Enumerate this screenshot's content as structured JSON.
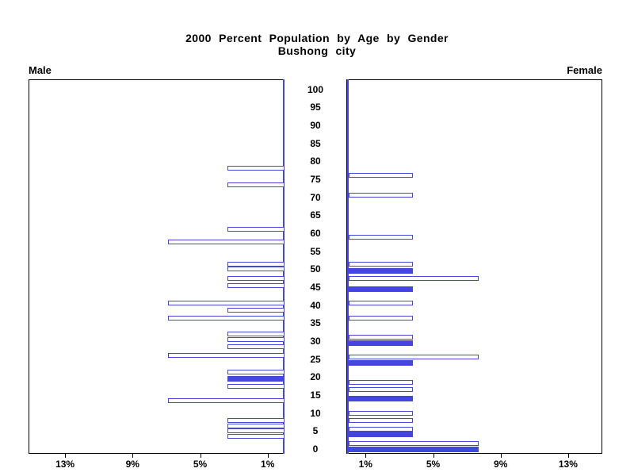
{
  "title": {
    "line1": "2000 Percent Population by Age by Gender",
    "line2": "Bushong city"
  },
  "panel_labels": {
    "male": "Male",
    "female": "Female"
  },
  "colors": {
    "bar_blue": "#4545E0",
    "axis_black": "#000000",
    "bar_fill_white": "#FFFFFF"
  },
  "axes": {
    "age_ticks": [
      100,
      95,
      90,
      85,
      80,
      75,
      70,
      65,
      60,
      55,
      50,
      45,
      40,
      35,
      30,
      25,
      20,
      15,
      10,
      5,
      0
    ],
    "male_pct_ticks": [
      {
        "value": 13,
        "label": "13%"
      },
      {
        "value": 9,
        "label": "9%"
      },
      {
        "value": 5,
        "label": "5%"
      },
      {
        "value": 1,
        "label": "1%"
      }
    ],
    "female_pct_ticks": [
      {
        "value": 1,
        "label": "1%"
      },
      {
        "value": 5,
        "label": "5%"
      },
      {
        "value": 9,
        "label": "9%"
      },
      {
        "value": 13,
        "label": "13%"
      }
    ]
  },
  "chart_data": {
    "type": "bar",
    "subtype": "population-pyramid",
    "title": "2000 Percent Population by Age by Gender",
    "subtitle": "Bushong city",
    "x_unit": "percent",
    "xlim": [
      0,
      15
    ],
    "x_ticks": [
      1,
      5,
      9,
      13
    ],
    "ylim": [
      0,
      100
    ],
    "y_tick_step": 5,
    "legend": "none",
    "grid": false,
    "series": [
      {
        "name": "Male",
        "side": "left",
        "bars": [
          {
            "age": 78,
            "pct": 3.4,
            "filled": false
          },
          {
            "age": 73.5,
            "pct": 3.4,
            "filled": false
          },
          {
            "age": 61,
            "pct": 3.4,
            "filled": false
          },
          {
            "age": 57.5,
            "pct": 6.9,
            "filled": false
          },
          {
            "age": 51.5,
            "pct": 3.4,
            "filled": false
          },
          {
            "age": 50,
            "pct": 3.4,
            "filled": false
          },
          {
            "age": 47.5,
            "pct": 3.4,
            "filled": false
          },
          {
            "age": 45.5,
            "pct": 3.4,
            "filled": false
          },
          {
            "age": 40.5,
            "pct": 6.9,
            "filled": false
          },
          {
            "age": 38.5,
            "pct": 3.4,
            "filled": false
          },
          {
            "age": 36.5,
            "pct": 6.9,
            "filled": false
          },
          {
            "age": 32,
            "pct": 3.4,
            "filled": false
          },
          {
            "age": 30.5,
            "pct": 3.4,
            "filled": false
          },
          {
            "age": 28.5,
            "pct": 3.4,
            "filled": false
          },
          {
            "age": 26,
            "pct": 6.9,
            "filled": false
          },
          {
            "age": 21.5,
            "pct": 3.4,
            "filled": false
          },
          {
            "age": 19.5,
            "pct": 3.4,
            "filled": true
          },
          {
            "age": 17.5,
            "pct": 3.4,
            "filled": false
          },
          {
            "age": 13.5,
            "pct": 6.9,
            "filled": false
          },
          {
            "age": 8,
            "pct": 3.4,
            "filled": false
          },
          {
            "age": 6.5,
            "pct": 3.4,
            "filled": false
          },
          {
            "age": 5,
            "pct": 3.4,
            "filled": false
          },
          {
            "age": 3.5,
            "pct": 3.4,
            "filled": false
          }
        ]
      },
      {
        "name": "Female",
        "side": "right",
        "bars": [
          {
            "age": 76,
            "pct": 3.8,
            "filled": false
          },
          {
            "age": 70.5,
            "pct": 3.8,
            "filled": false
          },
          {
            "age": 59,
            "pct": 3.8,
            "filled": false
          },
          {
            "age": 51.5,
            "pct": 3.8,
            "filled": false
          },
          {
            "age": 49.5,
            "pct": 3.8,
            "filled": true
          },
          {
            "age": 47.5,
            "pct": 7.7,
            "filled": false
          },
          {
            "age": 44.5,
            "pct": 3.8,
            "filled": true
          },
          {
            "age": 40.5,
            "pct": 3.8,
            "filled": false
          },
          {
            "age": 36.5,
            "pct": 3.8,
            "filled": false
          },
          {
            "age": 31,
            "pct": 3.8,
            "filled": false
          },
          {
            "age": 29.5,
            "pct": 3.8,
            "filled": true
          },
          {
            "age": 25.5,
            "pct": 7.7,
            "filled": false
          },
          {
            "age": 24,
            "pct": 3.8,
            "filled": true
          },
          {
            "age": 18.5,
            "pct": 3.8,
            "filled": false
          },
          {
            "age": 16.5,
            "pct": 3.8,
            "filled": false
          },
          {
            "age": 14,
            "pct": 3.8,
            "filled": true
          },
          {
            "age": 10,
            "pct": 3.8,
            "filled": false
          },
          {
            "age": 8,
            "pct": 3.8,
            "filled": false
          },
          {
            "age": 5.5,
            "pct": 3.8,
            "filled": false
          },
          {
            "age": 4,
            "pct": 3.8,
            "filled": true
          },
          {
            "age": 1.5,
            "pct": 7.7,
            "filled": false
          },
          {
            "age": 0,
            "pct": 7.7,
            "filled": true
          }
        ]
      }
    ]
  }
}
